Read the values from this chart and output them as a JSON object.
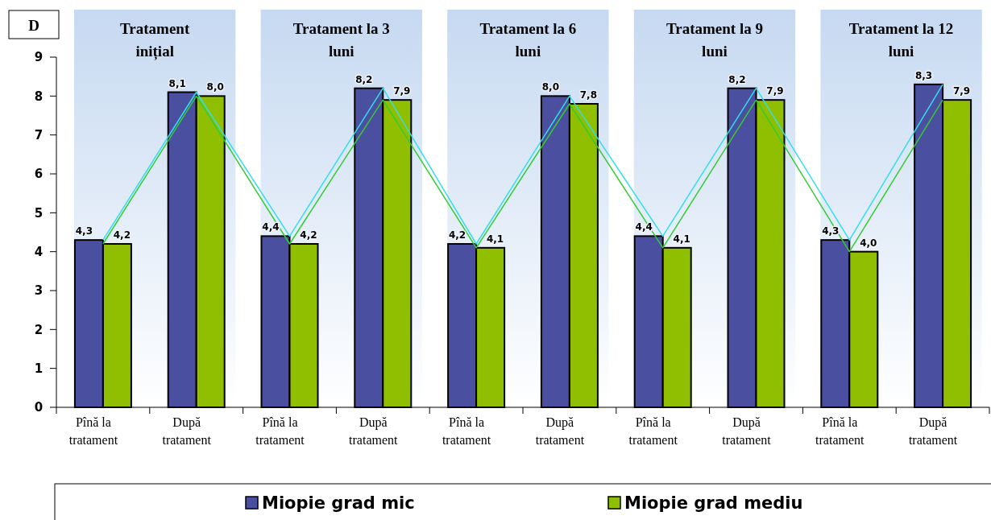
{
  "chart_data": {
    "type": "bar",
    "ylabel": "D",
    "categories": [
      "Pînă la tratament",
      "După tratament",
      "Pînă la tratament",
      "După tratament",
      "Pînă la tratament",
      "După tratament",
      "Pînă la tratament",
      "După tratament",
      "Pînă la tratament",
      "După tratament"
    ],
    "series": [
      {
        "name": "Miopie grad mic",
        "color": "#4a4fa0",
        "values": [
          4.3,
          8.1,
          4.4,
          8.2,
          4.2,
          8.0,
          4.4,
          8.2,
          4.3,
          8.3
        ],
        "value_labels": [
          "4,3",
          "8,1",
          "4,4",
          "8,2",
          "4,2",
          "8,0",
          "4,4",
          "8,2",
          "4,3",
          "8,3"
        ]
      },
      {
        "name": "Miopie grad mediu",
        "color": "#8fbf00",
        "values": [
          4.2,
          8.0,
          4.2,
          7.9,
          4.1,
          7.8,
          4.1,
          7.9,
          4.0,
          7.9
        ],
        "value_labels": [
          "4,2",
          "8,0",
          "4,2",
          "7,9",
          "4,1",
          "7,8",
          "4,1",
          "7,9",
          "4,0",
          "7,9"
        ]
      },
      {
        "type": "line",
        "color": "#33ddee",
        "values": [
          4.3,
          8.1,
          4.4,
          8.2,
          4.2,
          8.0,
          4.4,
          8.2,
          4.3,
          8.3
        ]
      },
      {
        "type": "line",
        "color": "#33cc33",
        "values": [
          4.2,
          8.0,
          4.2,
          7.9,
          4.1,
          7.8,
          4.1,
          7.9,
          4.0,
          7.9
        ]
      }
    ],
    "ylim": [
      0,
      9
    ],
    "yticks": [
      0,
      1,
      2,
      3,
      4,
      5,
      6,
      7,
      8,
      9
    ],
    "annotations": [
      "Tratament inițial",
      "Tratament la 3 luni",
      "Tratament la 6 luni",
      "Tratament la 9 luni",
      "Tratament la 12 luni"
    ],
    "legend": "bottom"
  }
}
